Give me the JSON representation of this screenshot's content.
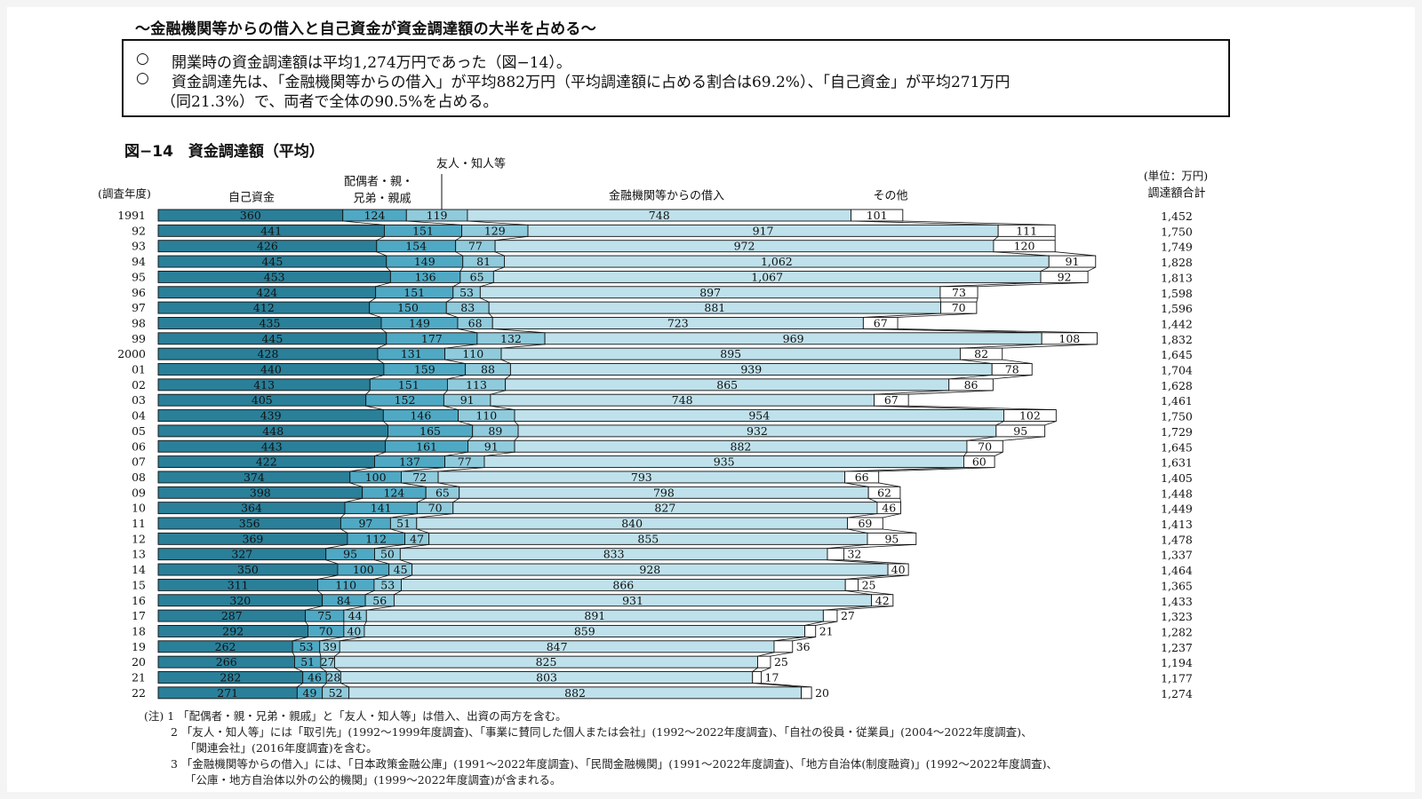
{
  "headline": "〜金融機関等からの借入と自己資金が資金調達額の大半を占める〜",
  "summary": {
    "bullet": "○",
    "line1": "開業時の資金調達額は平均1,274万円であった（図−14）。",
    "line2": "資金調達先は、「金融機関等からの借入」が平均882万円（平均調達額に占める割合は69.2%）、「自己資金」が平均271万円",
    "line3": "（同21.3%）で、両者で全体の90.5%を占める。"
  },
  "figure_title": "図−14　資金調達額（平均）",
  "chart_data": {
    "type": "bar",
    "orientation": "horizontal",
    "stacked": true,
    "year_axis_label": "(調査年度)",
    "unit_label": "(単位：万円)",
    "total_label": "調達額合計",
    "friends_label": "友人・知人等",
    "family_label_line1": "配偶者・親・",
    "family_label_line2": "兄弟・親戚",
    "years": [
      "1991",
      "92",
      "93",
      "94",
      "95",
      "96",
      "97",
      "98",
      "99",
      "2000",
      "01",
      "02",
      "03",
      "04",
      "05",
      "06",
      "07",
      "08",
      "09",
      "10",
      "11",
      "12",
      "13",
      "14",
      "15",
      "16",
      "17",
      "18",
      "19",
      "20",
      "21",
      "22"
    ],
    "series": [
      {
        "name": "自己資金",
        "color": "#2a7f99",
        "values": [
          360,
          441,
          426,
          445,
          453,
          424,
          412,
          435,
          445,
          428,
          440,
          413,
          405,
          439,
          448,
          443,
          422,
          374,
          398,
          364,
          356,
          369,
          327,
          350,
          311,
          320,
          287,
          292,
          262,
          266,
          282,
          271
        ]
      },
      {
        "name": "配偶者・親・兄弟・親戚",
        "color": "#4fa9c4",
        "values": [
          124,
          151,
          154,
          149,
          136,
          151,
          150,
          149,
          177,
          131,
          159,
          151,
          152,
          146,
          165,
          161,
          137,
          100,
          124,
          141,
          97,
          112,
          95,
          100,
          110,
          84,
          75,
          70,
          53,
          51,
          46,
          49
        ]
      },
      {
        "name": "友人・知人等",
        "color": "#8fcbdc",
        "values": [
          119,
          129,
          77,
          81,
          65,
          53,
          83,
          68,
          132,
          110,
          88,
          113,
          91,
          110,
          89,
          91,
          77,
          72,
          65,
          70,
          51,
          47,
          50,
          45,
          53,
          56,
          44,
          40,
          39,
          27,
          28,
          52
        ]
      },
      {
        "name": "金融機関等からの借入",
        "color": "#bfe1eb",
        "values": [
          748,
          917,
          972,
          1062,
          1067,
          897,
          881,
          723,
          969,
          895,
          939,
          865,
          748,
          954,
          932,
          882,
          935,
          793,
          798,
          827,
          840,
          855,
          833,
          928,
          866,
          931,
          891,
          859,
          847,
          825,
          803,
          882
        ]
      },
      {
        "name": "その他",
        "color": "#ffffff",
        "values": [
          101,
          111,
          120,
          91,
          92,
          73,
          70,
          67,
          108,
          82,
          78,
          86,
          67,
          102,
          95,
          70,
          60,
          66,
          62,
          46,
          69,
          95,
          32,
          40,
          25,
          42,
          27,
          21,
          36,
          25,
          17,
          20
        ]
      }
    ],
    "totals": [
      "1,452",
      "1,750",
      "1,749",
      "1,828",
      "1,813",
      "1,598",
      "1,596",
      "1,442",
      "1,832",
      "1,645",
      "1,704",
      "1,628",
      "1,461",
      "1,750",
      "1,729",
      "1,645",
      "1,631",
      "1,405",
      "1,448",
      "1,449",
      "1,413",
      "1,478",
      "1,337",
      "1,464",
      "1,365",
      "1,433",
      "1,323",
      "1,282",
      "1,237",
      "1,194",
      "1,177",
      "1,274"
    ]
  },
  "notes": [
    "(注) 1 「配偶者・親・兄弟・親戚」と「友人・知人等」は借入、出資の両方を含む。",
    "2 「友人・知人等」には「取引先」(1992〜1999年度調査)、「事業に賛同した個人または会社」(1992〜2022年度調査)、「自社の役員・従業員」(2004〜2022年度調査)、",
    "「関連会社」(2016年度調査)を含む。",
    "3 「金融機関等からの借入」には、「日本政策金融公庫」(1991〜2022年度調査)、「民間金融機関」(1991〜2022年度調査)、「地方自治体(制度融資)」(1992〜2022年度調査)、",
    "「公庫・地方自治体以外の公的機関」(1999〜2022年度調査)が含まれる。"
  ]
}
